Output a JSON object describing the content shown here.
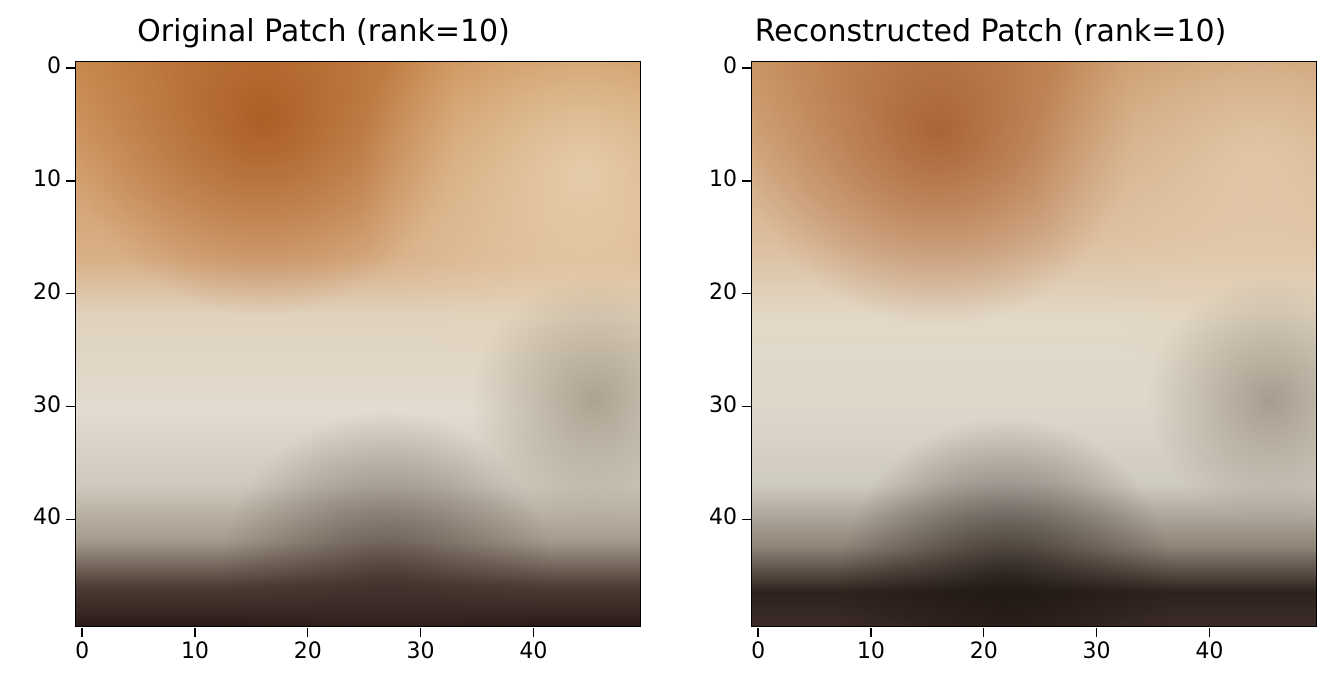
{
  "panels": [
    {
      "title": "Original Patch (rank=10)"
    },
    {
      "title": "Reconstructed Patch (rank=10)"
    }
  ],
  "axes": {
    "xticks": [
      "0",
      "10",
      "20",
      "30",
      "40"
    ],
    "yticks": [
      "0",
      "10",
      "20",
      "30",
      "40"
    ],
    "xlim": [
      -0.5,
      49.5
    ],
    "ylim": [
      -0.5,
      49.5
    ]
  }
}
